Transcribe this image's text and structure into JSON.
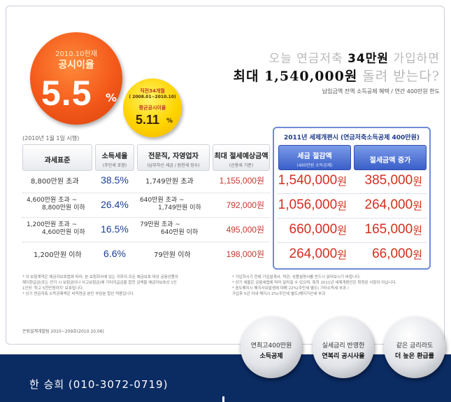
{
  "badges": {
    "main": {
      "date": "2010.10현재",
      "label": "공시이율",
      "rate": "5.5",
      "pct": "%"
    },
    "sub": {
      "line1": "직전34개월",
      "line2": "( 2008.01~2010.10)",
      "line3": "평균공시이율",
      "rate": "5.11",
      "pct": "%"
    }
  },
  "headline": {
    "line1_pre": "오늘 연금저축 ",
    "line1_hl": "34만원",
    "line1_post": " 가입하면",
    "line2_hl": "최대 1,540,000원",
    "line2_post": " 돌려 받는다?",
    "line3": "납입금액 전액 소득공제 혜택 / 연간 400만원 한도"
  },
  "table": {
    "as_of": "(2010년 1월 1일 시행)",
    "headers": [
      {
        "title": "과세표준",
        "sub": ""
      },
      {
        "title": "소득세율",
        "sub": "(주민세 포함)"
      },
      {
        "title": "전문직, 자영업자",
        "sub": "(납부하신 세금 / 원천세 징수)"
      },
      {
        "title": "최대 절세예상금액",
        "sub": "(신용세 기준)"
      }
    ],
    "rows": [
      {
        "base": [
          "8,800만원 초과"
        ],
        "rate": "38.5%",
        "pro": [
          "1,749만원 초과"
        ],
        "old_saving": "1,155,000원"
      },
      {
        "base": [
          "4,600만원 초과 ~",
          "8,800만원 이하"
        ],
        "rate": "26.4%",
        "pro": [
          "640만원 초과 ~",
          "1,749만원 이하"
        ],
        "old_saving": "792,000원"
      },
      {
        "base": [
          "1,200만원 초과 ~",
          "4,600만원 이하"
        ],
        "rate": "16.5%",
        "pro": [
          "79만원 초과 ~",
          "640만원 이하"
        ],
        "old_saving": "495,000원"
      },
      {
        "base": [
          "1,200만원 이하"
        ],
        "rate": "6.6%",
        "pro": [
          "79만원 이하"
        ],
        "old_saving": "198,000원"
      }
    ]
  },
  "new2011": {
    "title": "2011년 세제개편시 (연금저축소득공제 400만원)",
    "headers": [
      {
        "title": "세금 절감액",
        "sub": "(400만원 소득공제)"
      },
      {
        "title": "절세금액 증가",
        "sub": ""
      }
    ],
    "rows": [
      {
        "saving": "1,540,000",
        "increase": "385,000"
      },
      {
        "saving": "1,056,000",
        "increase": "264,000"
      },
      {
        "saving": "660,000",
        "increase": "165,000"
      },
      {
        "saving": "264,000",
        "increase": "66,000"
      }
    ],
    "currency": "원"
  },
  "notes": {
    "left": [
      "* 이 보험계약은 예금자보호법에 따라, 본 보험회사에 있는 귀하의 모든 예금보호 대상 금융상품의",
      "  해지환급금(또는 만기 시 보험금이나 사고보험금)에 기타지급금을 합한 금액을 예금자보호상 1인",
      "  1인당 '최고 5천만원까지' 보호됩니다.",
      "* 상기 연금저축 소득공제액은 비적연금 본인 부담분 합산 적용입니다."
    ],
    "right": [
      "* 가입하시기 전에 가입설계서, 약관, 상품설명서를 반드시 읽어보시기 바랍니다.",
      "* 상기 세율은 금융세법에 따라 달라질 수 있으며, 특히 2011년 세제개편안은 확정된 사항이 아닙니다.",
      "* 중도해지시 해지사유발생에 대해 22%(주민세 별도) 기타소득세 부과 /",
      "  가입후 5년 이내 해지시 2%(주민세 별도)해지가산세 부과"
    ],
    "basis": "은퇴설계개발팀 2010~209호(2010.10.06)"
  },
  "circles": [
    {
      "line1": "연최고400만원",
      "line2": "소득공제"
    },
    {
      "line1": "실세금리 반영한",
      "line2": "연복리 공시사율"
    },
    {
      "line1": "같은 금리라도",
      "line2": "더 높은 환급률"
    }
  ],
  "contact": "한 승희 (010-3072-0719)"
}
